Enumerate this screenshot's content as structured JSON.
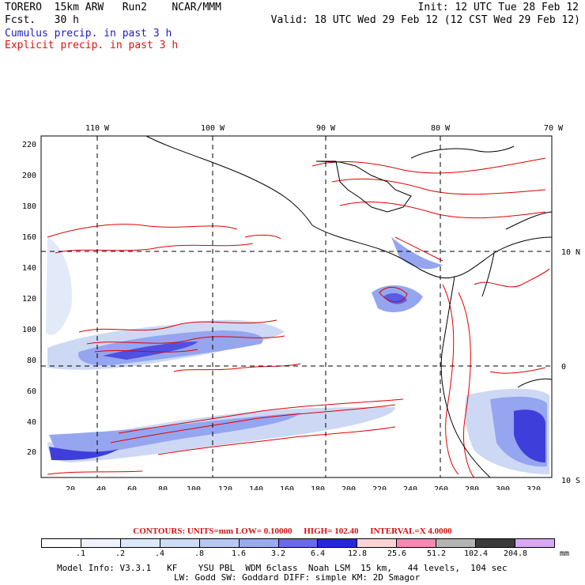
{
  "header": {
    "title": "TORERO  15km ARW   Run2    NCAR/MMM",
    "fcst": "Fcst.   30 h",
    "init": "Init: 12 UTC Tue 28 Feb 12",
    "valid": "Valid: 18 UTC Wed 29 Feb 12 (12 CST Wed 29 Feb 12)",
    "cumulus": "Cumulus precip. in past 3 h",
    "explicit": "Explicit precip. in past 3 h"
  },
  "map": {
    "top_lon_labels": [
      "110 W",
      "100 W",
      "90 W",
      "80 W",
      "70 W"
    ],
    "right_lat_labels": [
      "10 N",
      "0",
      "10 S"
    ],
    "y_grid_labels": [
      "20",
      "40",
      "60",
      "80",
      "100",
      "120",
      "140",
      "160",
      "180",
      "200",
      "220"
    ],
    "x_grid_labels": [
      "20",
      "40",
      "60",
      "80",
      "100",
      "120",
      "140",
      "160",
      "180",
      "200",
      "220",
      "240",
      "260",
      "280",
      "300",
      "320"
    ],
    "colors": {
      "explicit_contour": "#e00000",
      "coast": "#000000",
      "cumulus_light": "#c8d4f4",
      "cumulus_mid": "#8a9cee",
      "cumulus_dark": "#2a2ad8"
    }
  },
  "contours": {
    "units": "CONTOURS:  UNITS=mm  LOW= 0.10000",
    "high": "HIGH=  102.40",
    "interval": "INTERVAL=X  4.0000"
  },
  "legend": {
    "labels": [
      ".1",
      ".2",
      ".4",
      ".8",
      "1.6",
      "3.2",
      "6.4",
      "12.8",
      "25.6",
      "51.2",
      "102.4",
      "204.8"
    ],
    "unit": "mm",
    "colors": [
      "#ffffff",
      "#eef2fb",
      "#dfe8f8",
      "#cedcf6",
      "#b8c8f2",
      "#9aaaf0",
      "#6a6ae6",
      "#2626dc",
      "#fbd4d4",
      "#f08cb4",
      "#b4b4b4",
      "#3a3a3a",
      "#d8a8f4"
    ]
  },
  "footer": {
    "line1": "Model Info: V3.3.1   KF    YSU PBL  WDM 6class  Noah LSM  15 km,   44 levels,  104 sec",
    "line2": "LW: Godd SW: Goddard DIFF: simple KM: 2D Smagor"
  }
}
